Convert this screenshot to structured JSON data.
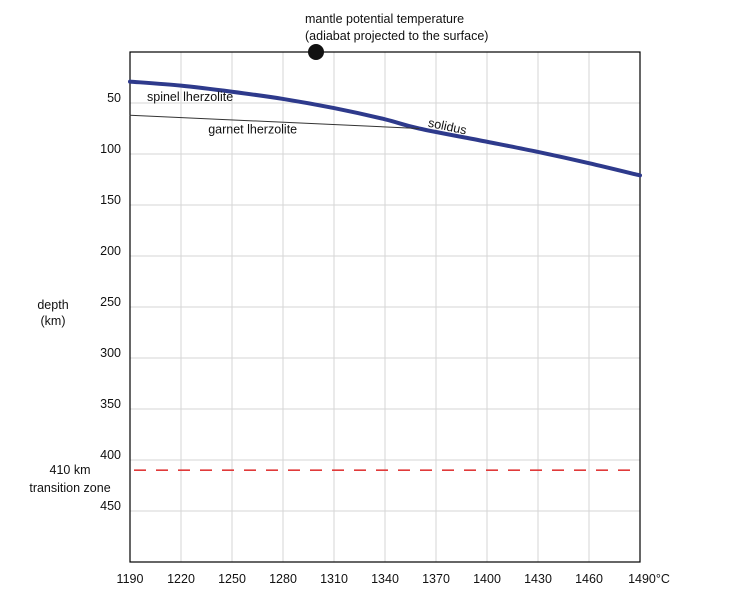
{
  "chart_data": {
    "type": "line",
    "title": "",
    "xlabel": "",
    "ylabel": [
      "depth",
      "(km)"
    ],
    "xlim": [
      1190,
      1490
    ],
    "ylim": [
      0,
      500
    ],
    "y_inverted": true,
    "x_unit_suffix": "°C",
    "grid": true,
    "xticks": [
      1190,
      1220,
      1250,
      1280,
      1310,
      1340,
      1370,
      1400,
      1430,
      1460,
      1490
    ],
    "yticks": [
      50,
      100,
      150,
      200,
      250,
      300,
      350,
      400,
      450
    ],
    "series": [
      {
        "label": "solidus",
        "color": "#2e3a8c",
        "x": [
          1190,
          1220,
          1250,
          1280,
          1310,
          1340,
          1360,
          1400,
          1430,
          1460,
          1490
        ],
        "y": [
          29,
          33,
          39,
          46,
          55,
          66,
          75,
          88,
          98,
          109,
          121
        ]
      },
      {
        "label": "spinel–garnet transition",
        "color": "#333333",
        "x": [
          1190,
          1360
        ],
        "y": [
          62,
          75
        ]
      }
    ],
    "annotations": [
      {
        "text": "spinel lherzolite",
        "x": 1200,
        "y": 48
      },
      {
        "text": "garnet lherzolite",
        "x": 1236,
        "y": 80
      },
      {
        "text": "solidus",
        "x": 1365,
        "y": 73,
        "rotate": 12
      }
    ],
    "marker": {
      "label_lines": [
        "mantle potential temperature",
        "(adiabat projected to the surface)"
      ],
      "x": 1300,
      "y": 0,
      "color": "#111111"
    },
    "transition_zone": {
      "label_lines": [
        "410 km",
        "transition zone"
      ],
      "depth": 410,
      "color": "#e03a3a"
    }
  }
}
